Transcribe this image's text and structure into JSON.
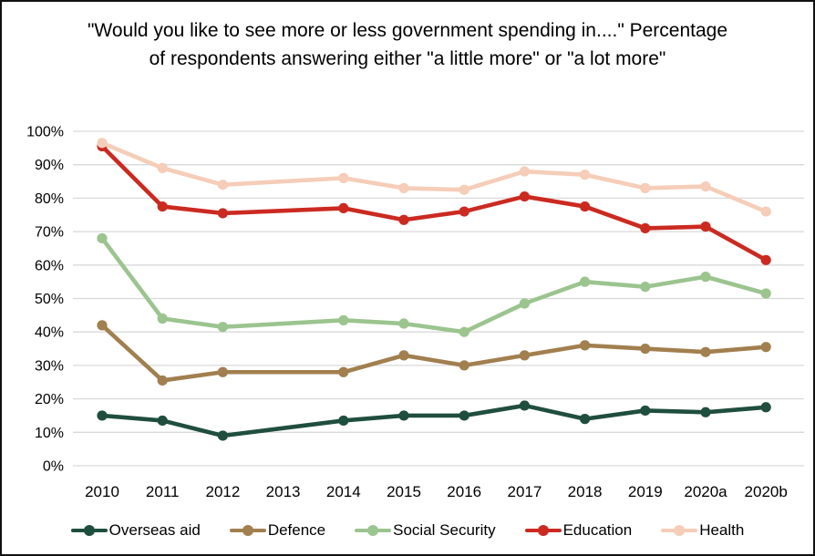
{
  "chart_data": {
    "type": "line",
    "title": "\"Would you like to see more or less government spending in....\" Percentage of respondents answering either \"a little more\" or \"a lot more\"",
    "xlabel": "",
    "ylabel": "",
    "categories": [
      "2010",
      "2011",
      "2012",
      "2013",
      "2014",
      "2015",
      "2016",
      "2017",
      "2018",
      "2019",
      "2020a",
      "2020b"
    ],
    "series": [
      {
        "name": "Overseas aid",
        "color": "#1F4E3E",
        "values": [
          15,
          13.5,
          9,
          null,
          13.5,
          15,
          15,
          18,
          14,
          16.5,
          16,
          17.5
        ]
      },
      {
        "name": "Defence",
        "color": "#A17F4E",
        "values": [
          42,
          25.5,
          28,
          null,
          28,
          33,
          30,
          33,
          36,
          35,
          34,
          35.5
        ]
      },
      {
        "name": "Social Security",
        "color": "#9BC48F",
        "values": [
          68,
          44,
          41.5,
          null,
          43.5,
          42.5,
          40,
          48.5,
          55,
          53.5,
          56.5,
          51.5
        ]
      },
      {
        "name": "Education",
        "color": "#CB2A21",
        "values": [
          95.5,
          77.5,
          75.5,
          null,
          77,
          73.5,
          76,
          80.5,
          77.5,
          71,
          71.5,
          61.5
        ]
      },
      {
        "name": "Health",
        "color": "#F5CDB8",
        "values": [
          96.5,
          89,
          84,
          null,
          86,
          83,
          82.5,
          88,
          87,
          83,
          83.5,
          76
        ]
      }
    ],
    "ylim": [
      0,
      100
    ],
    "ytick_step": 10,
    "ytick_format": "percent",
    "grid": true,
    "gridline_color": "#D9D9D9",
    "legend_position": "bottom",
    "missing_years": [
      "2013"
    ]
  }
}
